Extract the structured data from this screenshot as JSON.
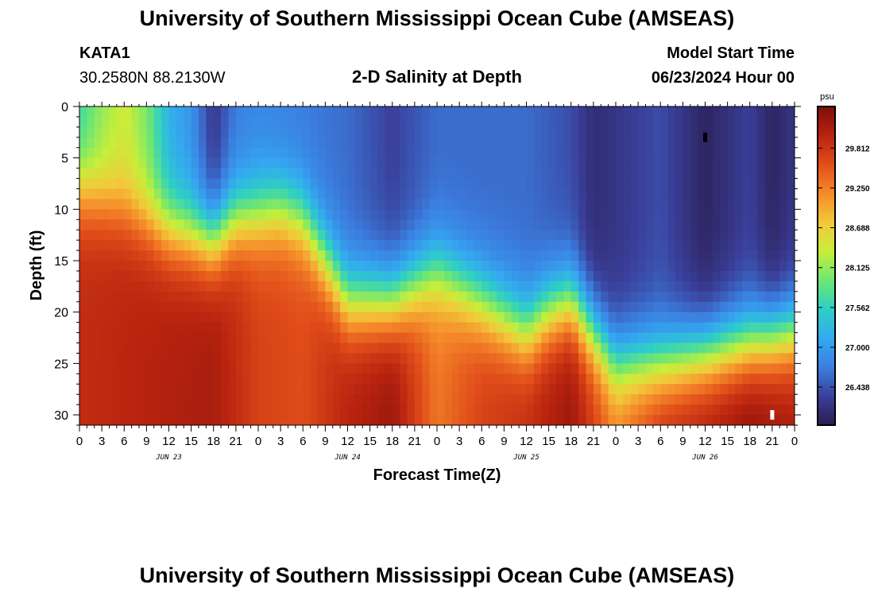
{
  "page": {
    "title": "University of Southern Mississippi Ocean Cube (AMSEAS)",
    "footer_title": "University of Southern Mississippi Ocean Cube (AMSEAS)"
  },
  "station": {
    "id": "KATA1",
    "coords": "30.2580N  88.2130W"
  },
  "model": {
    "label": "Model Start Time",
    "start": "06/23/2024 Hour 00"
  },
  "chart_data": {
    "type": "heatmap",
    "title": "2-D Salinity at Depth",
    "xlabel": "Forecast Time(Z)",
    "ylabel": "Depth (ft)",
    "x_range_hours": [
      0,
      96
    ],
    "y_range_ft": [
      0,
      31
    ],
    "y_inverted": true,
    "x_tick_step_hours": 3,
    "x_tick_labels": [
      "0",
      "3",
      "6",
      "9",
      "12",
      "15",
      "18",
      "21",
      "0",
      "3",
      "6",
      "9",
      "12",
      "15",
      "18",
      "21",
      "0",
      "3",
      "6",
      "9",
      "12",
      "15",
      "18",
      "21",
      "0",
      "3",
      "6",
      "9",
      "12",
      "15",
      "18",
      "21",
      "0"
    ],
    "y_ticks": [
      0,
      5,
      10,
      15,
      20,
      25,
      30
    ],
    "day_labels": [
      {
        "label": "JUN 23",
        "hour": 12
      },
      {
        "label": "JUN 24",
        "hour": 36
      },
      {
        "label": "JUN 25",
        "hour": 60
      },
      {
        "label": "JUN 26",
        "hour": 84
      }
    ],
    "colorbar": {
      "unit": "psu",
      "range": [
        25.9,
        30.4
      ],
      "ticks": [
        "29.812",
        "29.250",
        "28.688",
        "28.125",
        "27.562",
        "27.000",
        "26.438"
      ]
    },
    "colorscale": [
      "#2a1d4e",
      "#3a3f9a",
      "#3b7fe0",
      "#34a9f0",
      "#2ed0c4",
      "#6ee672",
      "#c7ee3a",
      "#f3c83a",
      "#f58a2a",
      "#e14e1a",
      "#b8230f",
      "#7c0f0a"
    ],
    "halocline_depth_ft": [
      {
        "hour": 0,
        "depth": 8
      },
      {
        "hour": 6,
        "depth": 10
      },
      {
        "hour": 12,
        "depth": 12
      },
      {
        "hour": 18,
        "depth": 13
      },
      {
        "hour": 21,
        "depth": 11
      },
      {
        "hour": 27,
        "depth": 10
      },
      {
        "hour": 30,
        "depth": 11
      },
      {
        "hour": 33,
        "depth": 15
      },
      {
        "hour": 36,
        "depth": 19
      },
      {
        "hour": 42,
        "depth": 19
      },
      {
        "hour": 48,
        "depth": 16
      },
      {
        "hour": 54,
        "depth": 19
      },
      {
        "hour": 60,
        "depth": 22
      },
      {
        "hour": 63,
        "depth": 20
      },
      {
        "hour": 66,
        "depth": 19
      },
      {
        "hour": 69,
        "depth": 22
      },
      {
        "hour": 72,
        "depth": 25
      },
      {
        "hour": 78,
        "depth": 25
      },
      {
        "hour": 84,
        "depth": 24
      },
      {
        "hour": 90,
        "depth": 23
      },
      {
        "hour": 96,
        "depth": 22
      }
    ],
    "surface_salinity_psu": [
      {
        "hour": 0,
        "value": 27.6
      },
      {
        "hour": 3,
        "value": 28.1
      },
      {
        "hour": 6,
        "value": 28.4
      },
      {
        "hour": 9,
        "value": 28.0
      },
      {
        "hour": 12,
        "value": 27.2
      },
      {
        "hour": 15,
        "value": 26.9
      },
      {
        "hour": 18,
        "value": 26.2
      },
      {
        "hour": 21,
        "value": 26.7
      },
      {
        "hour": 24,
        "value": 26.8
      },
      {
        "hour": 36,
        "value": 26.6
      },
      {
        "hour": 42,
        "value": 26.3
      },
      {
        "hour": 48,
        "value": 26.6
      },
      {
        "hour": 60,
        "value": 26.6
      },
      {
        "hour": 66,
        "value": 26.4
      },
      {
        "hour": 69,
        "value": 26.1
      },
      {
        "hour": 78,
        "value": 26.4
      },
      {
        "hour": 84,
        "value": 26.0
      },
      {
        "hour": 90,
        "value": 26.3
      },
      {
        "hour": 93,
        "value": 26.0
      },
      {
        "hour": 96,
        "value": 26.2
      }
    ],
    "deep_salinity_psu": [
      {
        "hour": 0,
        "value": 29.9
      },
      {
        "hour": 18,
        "value": 30.1
      },
      {
        "hour": 24,
        "value": 29.7
      },
      {
        "hour": 30,
        "value": 29.6
      },
      {
        "hour": 36,
        "value": 30.0
      },
      {
        "hour": 42,
        "value": 30.2
      },
      {
        "hour": 48,
        "value": 29.3
      },
      {
        "hour": 54,
        "value": 29.7
      },
      {
        "hour": 60,
        "value": 29.9
      },
      {
        "hour": 66,
        "value": 30.2
      },
      {
        "hour": 72,
        "value": 29.3
      },
      {
        "hour": 78,
        "value": 29.9
      },
      {
        "hour": 90,
        "value": 30.3
      },
      {
        "hour": 96,
        "value": 30.1
      }
    ],
    "annotations": [
      {
        "type": "marker",
        "hour": 84,
        "depth_ft": 3,
        "color": "#000000"
      },
      {
        "type": "marker",
        "hour": 93,
        "depth_ft": 30,
        "color": "#ffffff"
      }
    ]
  }
}
